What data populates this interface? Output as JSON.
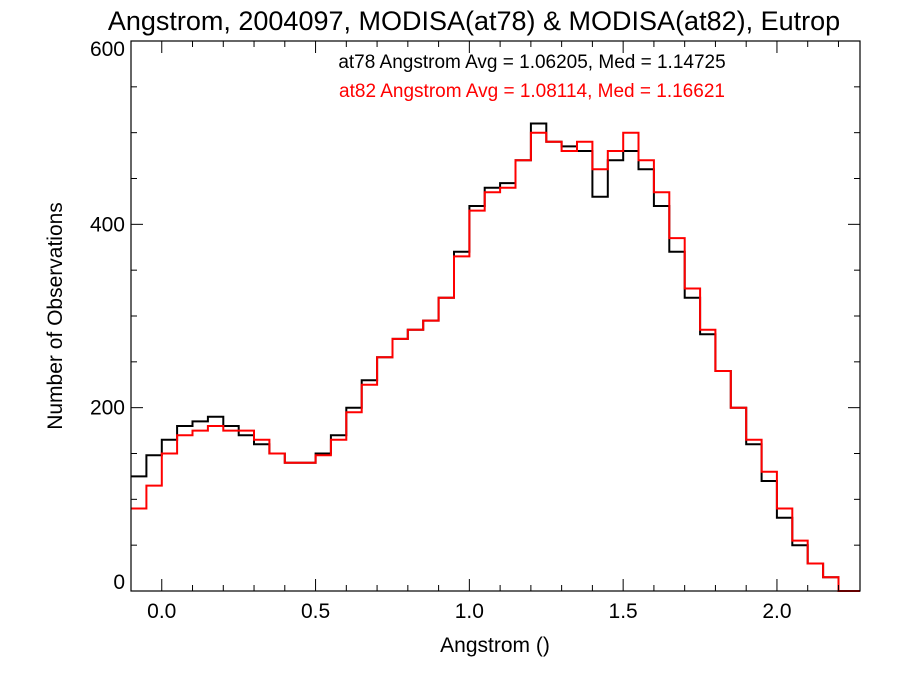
{
  "chart_data": {
    "type": "line",
    "title": "Angstrom, 2004097, MODISA(at78) & MODISA(at82), Eutrop",
    "xlabel": "Angstrom ()",
    "ylabel": "Number of Observations",
    "xlim": [
      -0.1,
      2.27
    ],
    "ylim": [
      0,
      600
    ],
    "x_ticks": [
      0.0,
      0.5,
      1.0,
      1.5,
      2.0
    ],
    "x_tick_labels": [
      "0.0",
      "0.5",
      "1.0",
      "1.5",
      "2.0"
    ],
    "y_ticks": [
      0,
      200,
      400,
      600
    ],
    "y_tick_labels": [
      "0",
      "200",
      "400",
      "600"
    ],
    "grid": false,
    "annotations": [
      {
        "text": "at78 Angstrom Avg = 1.06205, Med = 1.14725",
        "color": "#000000"
      },
      {
        "text": "at82 Angstrom Avg = 1.08114, Med = 1.16621",
        "color": "#ff0000"
      }
    ],
    "series": [
      {
        "color": "#000000",
        "x": [
          -0.1,
          -0.05,
          0.0,
          0.05,
          0.1,
          0.15,
          0.2,
          0.25,
          0.3,
          0.35,
          0.4,
          0.45,
          0.5,
          0.55,
          0.6,
          0.65,
          0.7,
          0.75,
          0.8,
          0.85,
          0.9,
          0.95,
          1.0,
          1.05,
          1.1,
          1.15,
          1.2,
          1.25,
          1.3,
          1.35,
          1.4,
          1.45,
          1.5,
          1.55,
          1.6,
          1.65,
          1.7,
          1.75,
          1.8,
          1.85,
          1.9,
          1.95,
          2.0,
          2.05,
          2.1,
          2.15,
          2.2,
          2.25
        ],
        "y": [
          125,
          148,
          165,
          180,
          185,
          190,
          180,
          170,
          160,
          150,
          140,
          140,
          150,
          170,
          200,
          230,
          255,
          275,
          285,
          295,
          320,
          370,
          420,
          440,
          445,
          470,
          510,
          490,
          485,
          480,
          430,
          470,
          480,
          460,
          420,
          370,
          320,
          280,
          240,
          200,
          160,
          120,
          80,
          50,
          30,
          15,
          0,
          0
        ]
      },
      {
        "color": "#ff0000",
        "x": [
          -0.1,
          -0.05,
          0.0,
          0.05,
          0.1,
          0.15,
          0.2,
          0.25,
          0.3,
          0.35,
          0.4,
          0.45,
          0.5,
          0.55,
          0.6,
          0.65,
          0.7,
          0.75,
          0.8,
          0.85,
          0.9,
          0.95,
          1.0,
          1.05,
          1.1,
          1.15,
          1.2,
          1.25,
          1.3,
          1.35,
          1.4,
          1.45,
          1.5,
          1.55,
          1.6,
          1.65,
          1.7,
          1.75,
          1.8,
          1.85,
          1.9,
          1.95,
          2.0,
          2.05,
          2.1,
          2.15,
          2.2,
          2.25
        ],
        "y": [
          90,
          115,
          150,
          170,
          175,
          180,
          175,
          175,
          165,
          150,
          140,
          140,
          148,
          165,
          195,
          225,
          255,
          275,
          285,
          295,
          320,
          365,
          415,
          435,
          440,
          470,
          500,
          490,
          480,
          490,
          460,
          480,
          500,
          470,
          435,
          385,
          330,
          285,
          240,
          200,
          165,
          130,
          90,
          55,
          30,
          15,
          0,
          0
        ]
      }
    ]
  }
}
